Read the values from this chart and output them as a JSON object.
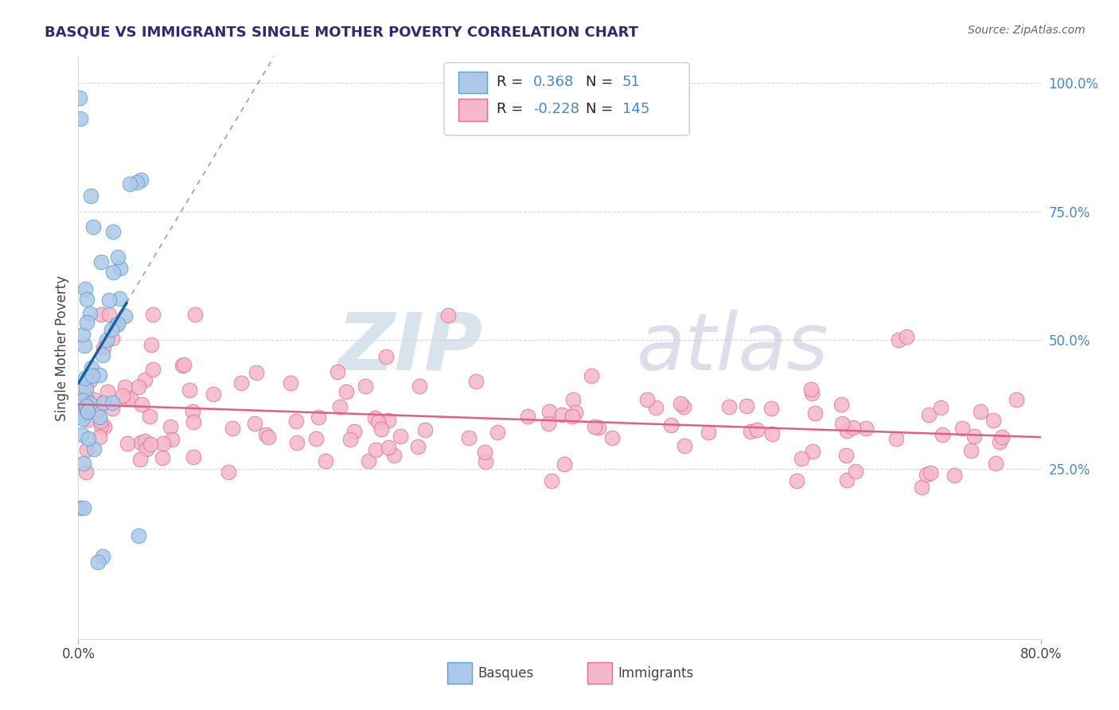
{
  "title": "BASQUE VS IMMIGRANTS SINGLE MOTHER POVERTY CORRELATION CHART",
  "source": "Source: ZipAtlas.com",
  "ylabel": "Single Mother Poverty",
  "right_yticks": [
    "25.0%",
    "50.0%",
    "75.0%",
    "100.0%"
  ],
  "right_ytick_vals": [
    0.25,
    0.5,
    0.75,
    1.0
  ],
  "legend_label1": "Basques",
  "legend_label2": "Immigrants",
  "r1": 0.368,
  "n1": 51,
  "r2": -0.228,
  "n2": 145,
  "color_basque_fill": "#adc8e8",
  "color_basque_edge": "#5a9fd4",
  "color_immigrant_fill": "#f5b8ca",
  "color_immigrant_edge": "#e07090",
  "color_line_basque": "#1a5fa8",
  "color_line_immigrant": "#e06080",
  "color_grid": "#cccccc",
  "watermark_color": "#d8e8f4",
  "watermark_color2": "#e8d0dc",
  "background_color": "#ffffff",
  "title_color": "#2c2c6e",
  "source_color": "#666666",
  "ytick_color": "#4488cc",
  "xmin": 0.0,
  "xmax": 0.8,
  "ymin": -0.08,
  "ymax": 1.05
}
